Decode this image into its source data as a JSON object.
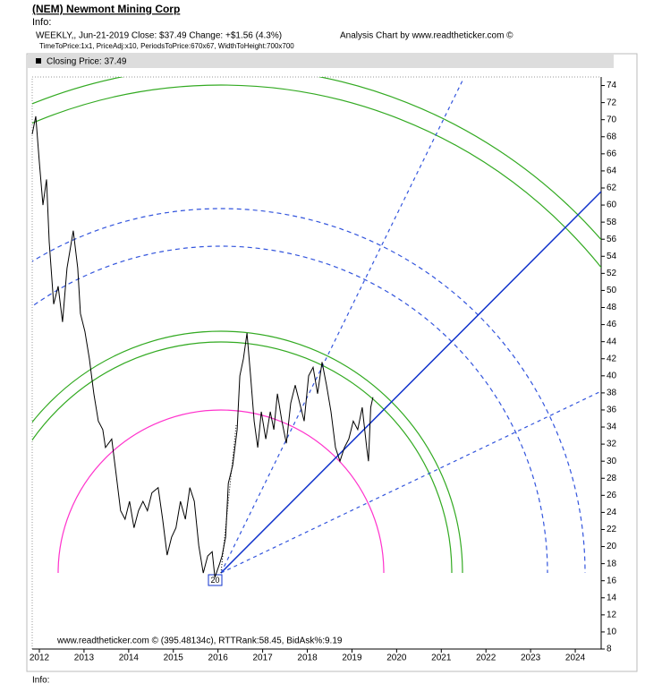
{
  "chart_data": {
    "type": "line",
    "title": "(NEM) Newmont Mining Corp",
    "info_top": "Info:",
    "subtitle": "WEEKLY,, Jun-21-2019  Close: $37.49  Change: +$1.56  (4.3%)",
    "credit": "Analysis Chart by www.readtheticker.com ©",
    "settings_line": "TimeToPrice:1x1, PriceAdj:x10, PeriodsToPrice:670x67, WidthToHeight:700x700",
    "annotation": "20",
    "footer": "www.readtheticker.com © (395.48134c), RTTRank:58.45, BidAsk%:9.19",
    "info_bottom": "Info:",
    "xlim": [
      2011.84,
      2024.58
    ],
    "xticks": [
      2012,
      2013,
      2014,
      2015,
      2016,
      2017,
      2018,
      2019,
      2020,
      2021,
      2022,
      2023,
      2024
    ],
    "ylim": [
      8,
      75
    ],
    "yticks": [
      8,
      10,
      12,
      14,
      16,
      18,
      20,
      22,
      24,
      26,
      28,
      30,
      32,
      34,
      36,
      38,
      40,
      42,
      44,
      46,
      48,
      50,
      52,
      54,
      56,
      58,
      60,
      62,
      64,
      66,
      68,
      70,
      72,
      74
    ],
    "grid": false,
    "x": [
      2011.84,
      2011.92,
      2012.0,
      2012.08,
      2012.16,
      2012.22,
      2012.32,
      2012.42,
      2012.52,
      2012.62,
      2012.76,
      2012.86,
      2012.92,
      2013.02,
      2013.12,
      2013.22,
      2013.32,
      2013.42,
      2013.48,
      2013.62,
      2013.72,
      2013.82,
      2013.92,
      2014.02,
      2014.12,
      2014.22,
      2014.32,
      2014.42,
      2014.52,
      2014.66,
      2014.76,
      2014.86,
      2014.96,
      2015.06,
      2015.16,
      2015.27,
      2015.37,
      2015.47,
      2015.57,
      2015.67,
      2015.77,
      2015.87,
      2015.93,
      2016.03,
      2016.09,
      2016.17,
      2016.23,
      2016.33,
      2016.43,
      2016.49,
      2016.57,
      2016.65,
      2016.73,
      2016.81,
      2016.89,
      2016.97,
      2017.07,
      2017.17,
      2017.25,
      2017.33,
      2017.43,
      2017.53,
      2017.63,
      2017.73,
      2017.83,
      2017.93,
      2018.03,
      2018.13,
      2018.23,
      2018.33,
      2018.43,
      2018.53,
      2018.63,
      2018.73,
      2018.83,
      2018.93,
      2019.03,
      2019.13,
      2019.23,
      2019.33,
      2019.37,
      2019.42,
      2019.47
    ],
    "series": [
      {
        "name": "Closing Price: 37.49",
        "color": "#000000",
        "values": [
          68.3,
          70.4,
          65,
          60,
          63,
          55.7,
          48.4,
          50.5,
          46.3,
          52.6,
          57,
          52.6,
          47.3,
          45.2,
          42,
          37.9,
          34.7,
          33.7,
          31.6,
          32.6,
          28.4,
          24.2,
          23.2,
          25.3,
          22.2,
          24.2,
          25.3,
          24.2,
          26.3,
          26.9,
          23.2,
          19,
          21.1,
          22.2,
          25.3,
          23.2,
          26.9,
          25.3,
          20.1,
          16.9,
          18.9,
          19.4,
          16.4,
          17.9,
          18.9,
          21.1,
          27.4,
          29.5,
          33.7,
          40,
          42,
          45,
          40,
          34.7,
          31.6,
          35.8,
          32.6,
          35.8,
          33.7,
          37.9,
          34.7,
          32.1,
          36.8,
          38.9,
          36.8,
          34.7,
          40,
          41,
          37.9,
          41.6,
          38.9,
          35.8,
          31.6,
          30,
          31.6,
          32.6,
          34.7,
          33.7,
          36.3,
          31.6,
          30,
          36.3,
          37.49
        ]
      }
    ]
  }
}
